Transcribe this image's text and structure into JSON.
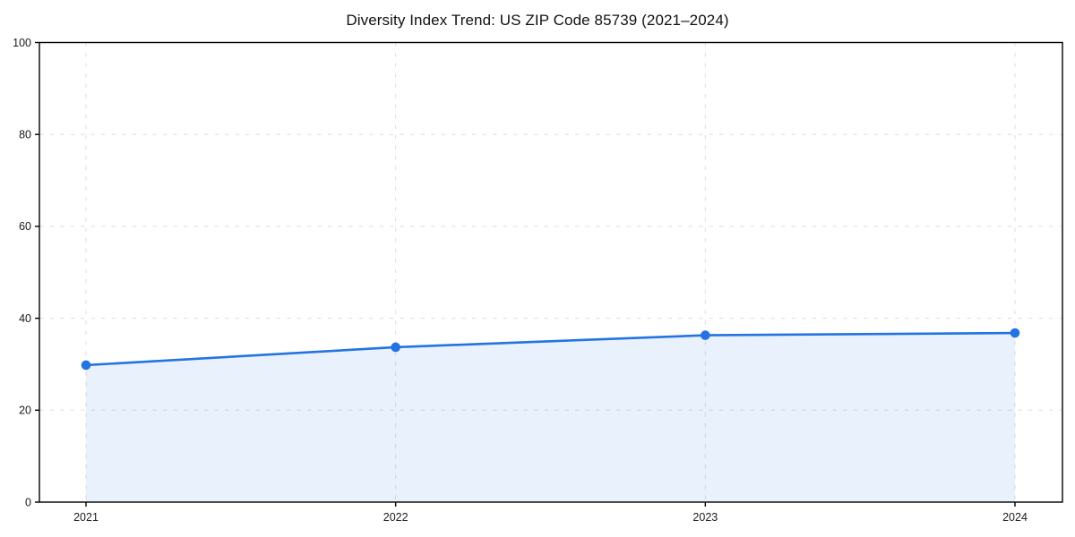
{
  "chart_data": {
    "type": "area",
    "title": "Diversity Index Trend: US ZIP Code 85739 (2021–2024)",
    "x": [
      2021,
      2022,
      2023,
      2024
    ],
    "xtick_labels": [
      "2021",
      "2022",
      "2023",
      "2024"
    ],
    "series": [
      {
        "name": "Diversity Index",
        "values": [
          29.8,
          33.7,
          36.3,
          36.8
        ]
      }
    ],
    "xlabel": "",
    "ylabel": "",
    "ylim": [
      0,
      100
    ],
    "yticks": [
      0,
      20,
      40,
      60,
      80,
      100
    ],
    "grid": true,
    "grid_style": "dashed",
    "legend_position": "none",
    "colors": {
      "line": "#2374e1",
      "marker": "#2374e1",
      "fill": "#2374e1",
      "fill_opacity": 0.1,
      "grid": "#dedede",
      "axis": "#000000",
      "text": "#1a1a1a",
      "background": "#ffffff"
    }
  }
}
